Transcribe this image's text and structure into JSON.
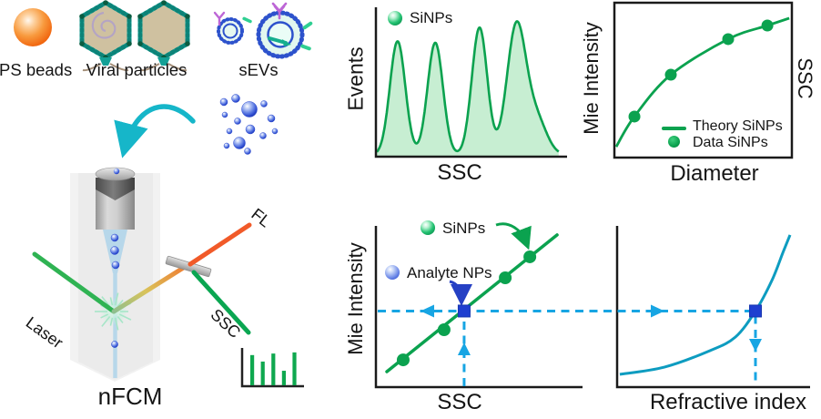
{
  "palette": {
    "green": "#0ba24f",
    "green_fill": "#c7eed2",
    "cyan_dash": "#17a5e3",
    "glow_blue": "#9bd3f5",
    "blue_square": "#1f3fd0",
    "teal_curve": "#0d9cc0",
    "laser_green": "#2fb353",
    "fl_orange": "#f15a29",
    "axis_black": "#1a1a1a"
  },
  "specimen_legend": {
    "ps_beads": {
      "label": "PS beads",
      "icon": "orange-sphere"
    },
    "viral_particles": {
      "label": "Viral particles",
      "icon": "hexagonal-capsid"
    },
    "sevs": {
      "label": "sEVs",
      "icon": "lipid-vesicle"
    }
  },
  "instrument": {
    "name": "nFCM",
    "laser_label": "Laser",
    "fl_label": "FL",
    "ssc_label": "SSC"
  },
  "chart_data": [
    {
      "id": "events_histogram",
      "type": "area",
      "xlabel": "SSC",
      "ylabel": "Events",
      "axes": "L",
      "legend": [
        {
          "label": "SiNPs",
          "marker": "green-sphere"
        }
      ],
      "description": "Four SiNP size populations resolved as peaks along SSC",
      "peaks_norm": [
        {
          "x": 0.115,
          "h": 0.79,
          "w": 0.041
        },
        {
          "x": 0.315,
          "h": 0.78,
          "w": 0.041
        },
        {
          "x": 0.55,
          "h": 0.885,
          "w": 0.041
        },
        {
          "x": 0.745,
          "h": 0.885,
          "w": 0.05
        },
        {
          "x": 0.85,
          "h": 0.25,
          "w": 0.055
        }
      ]
    },
    {
      "id": "mie_vs_diameter",
      "type": "line+scatter",
      "xlabel": "Diameter",
      "ylabel": "Mie Intensity",
      "ylabel_right": "SSC",
      "axes": "box",
      "legend": [
        {
          "label": "Theory SiNPs",
          "marker": "green-line"
        },
        {
          "label": "Data SiNPs",
          "marker": "green-dot"
        }
      ],
      "curve_norm": [
        [
          0.01,
          0.07
        ],
        [
          0.113,
          0.265
        ],
        [
          0.318,
          0.535
        ],
        [
          0.641,
          0.765
        ],
        [
          0.862,
          0.853
        ],
        [
          0.985,
          0.9
        ]
      ],
      "points_norm": [
        [
          0.113,
          0.265
        ],
        [
          0.318,
          0.535
        ],
        [
          0.641,
          0.765
        ],
        [
          0.862,
          0.853
        ]
      ]
    },
    {
      "id": "mie_vs_ssc_calibration",
      "type": "line+scatter",
      "xlabel": "SSC",
      "ylabel": "Mie Intensity",
      "axes": "L",
      "annotations": [
        {
          "label": "SiNPs",
          "marker": "green-sphere"
        },
        {
          "label": "Analyte NPs",
          "marker": "blue-sphere"
        }
      ],
      "line_norm": [
        [
          0.053,
          0.096
        ],
        [
          0.877,
          0.944
        ]
      ],
      "points_norm": [
        [
          0.132,
          0.169
        ],
        [
          0.33,
          0.356
        ],
        [
          0.626,
          0.678
        ],
        [
          0.745,
          0.808
        ]
      ],
      "square_norm": [
        0.427,
        0.472
      ]
    },
    {
      "id": "refractive_index_lookup",
      "type": "line",
      "xlabel": "Refractive index",
      "ylabel": "",
      "axes": "L",
      "curve_norm": [
        [
          0.014,
          0.079
        ],
        [
          0.245,
          0.124
        ],
        [
          0.481,
          0.226
        ],
        [
          0.613,
          0.311
        ],
        [
          0.717,
          0.472
        ],
        [
          0.802,
          0.661
        ],
        [
          0.858,
          0.831
        ],
        [
          0.896,
          0.944
        ]
      ],
      "square_norm": [
        0.717,
        0.472
      ]
    },
    {
      "id": "ssc_signal_trace",
      "type": "bar",
      "values_norm": [
        0.79,
        0.62,
        0.83,
        0.38,
        0.86
      ],
      "description": "single-particle burst trace beside SSC detector"
    }
  ]
}
